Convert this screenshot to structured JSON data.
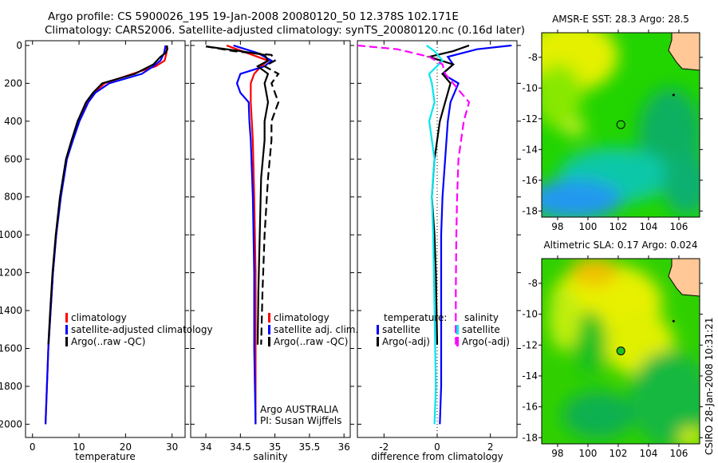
{
  "header": {
    "line1": "Argo profile: CS 5900026_195 19-Jan-2008 20080120_50 12.378S 102.171E",
    "line2": "Climatology: CARS2006. Satellite-adjusted climatology: synTS_20080120.nc (0.16d later)"
  },
  "credit": "CSIRO 28-Jan-2008 10:31:21",
  "colors": {
    "clim": "#ff0000",
    "sat": "#0000ff",
    "argo": "#000000",
    "sal_sat": "#00e5ee",
    "sal_argo": "#ff00ff"
  },
  "chart_data": [
    {
      "type": "line",
      "id": "temperature",
      "xlabel": "temperature",
      "ylabel": "",
      "xlim": [
        -1.5,
        32.8
      ],
      "ylim": [
        2070,
        -25
      ],
      "xticks": [
        "0",
        "10",
        "20",
        "30"
      ],
      "xtickvals": [
        0,
        10,
        20,
        30
      ],
      "yticks": [
        "0",
        "200",
        "400",
        "600",
        "800",
        "1000",
        "1200",
        "1400",
        "1600",
        "1800",
        "2000"
      ],
      "legend": [
        "climatology",
        "satellite-adjusted climatology",
        "Argo(..raw -QC)"
      ],
      "series": [
        {
          "name": "climatology",
          "color": "#ff0000",
          "depth": [
            0,
            40,
            80,
            110,
            150,
            200,
            250,
            300,
            400,
            500,
            600,
            800,
            1000,
            1200,
            1400,
            1600,
            1800,
            2000
          ],
          "values": [
            28.9,
            28.8,
            28.4,
            26.5,
            21.5,
            15.5,
            13.2,
            11.8,
            10,
            8.6,
            7.3,
            6,
            5.1,
            4.4,
            3.9,
            3.4,
            3.1,
            2.8
          ]
        },
        {
          "name": "satellite-adjusted climatology",
          "color": "#0000ff",
          "depth": [
            0,
            40,
            80,
            110,
            150,
            200,
            250,
            300,
            400,
            500,
            600,
            800,
            1000,
            1200,
            1400,
            1600,
            1800,
            2000
          ],
          "values": [
            28.6,
            28.3,
            27.5,
            26,
            23.5,
            16.5,
            13.5,
            12,
            10.1,
            8.7,
            7.4,
            6.1,
            5.1,
            4.4,
            3.9,
            3.4,
            3.1,
            2.8
          ]
        },
        {
          "name": "Argo(..raw -QC)",
          "color": "#000000",
          "depth": [
            0,
            20,
            40,
            60,
            100,
            150,
            200,
            250,
            300,
            400,
            500,
            600,
            800,
            1000,
            1200,
            1400,
            1580
          ],
          "values": [
            28.9,
            29,
            28.6,
            27.5,
            26,
            22,
            15,
            13,
            11.5,
            9.7,
            8.4,
            7.2,
            5.9,
            5,
            4.3,
            3.8,
            3.4
          ]
        }
      ]
    },
    {
      "type": "line",
      "id": "salinity",
      "xlabel": "salinity",
      "ylabel": "",
      "xlim": [
        33.78,
        36.09
      ],
      "ylim": [
        2070,
        -25
      ],
      "xticks": [
        "34",
        "34.5",
        "35",
        "35.5",
        "36"
      ],
      "xtickvals": [
        34,
        34.5,
        35,
        35.5,
        36
      ],
      "legend": [
        "climatology",
        "satellite adj. clim.",
        "Argo(..raw -QC)"
      ],
      "annotation": [
        "Argo AUSTRALIA",
        "PI: Susan Wijffels"
      ],
      "series": [
        {
          "name": "climatology",
          "color": "#ff0000",
          "depth": [
            0,
            40,
            80,
            110,
            150,
            200,
            300,
            500,
            800,
            1200,
            1600,
            2000
          ],
          "values": [
            34.3,
            34.6,
            34.9,
            34.8,
            34.7,
            34.65,
            34.65,
            34.68,
            34.7,
            34.72,
            34.72,
            34.72
          ]
        },
        {
          "name": "satellite adj. clim.",
          "color": "#0000ff",
          "depth": [
            0,
            40,
            80,
            110,
            150,
            200,
            250,
            300,
            400,
            500,
            800,
            1200,
            1600,
            2000
          ],
          "values": [
            34.4,
            34.75,
            34.95,
            34.85,
            34.5,
            34.45,
            34.5,
            34.62,
            34.63,
            34.65,
            34.68,
            34.7,
            34.7,
            34.72
          ]
        },
        {
          "name": "Argo(..raw -QC)",
          "color": "#000000",
          "dashed": true,
          "depth": [
            5,
            30,
            50,
            80,
            110,
            150,
            200,
            300,
            400,
            500,
            700,
            1000,
            1300,
            1580
          ],
          "values": [
            34.0,
            34.4,
            34.95,
            35.0,
            34.85,
            35.05,
            34.95,
            35.05,
            34.95,
            34.95,
            34.9,
            34.85,
            34.82,
            34.8
          ]
        },
        {
          "name": "Argo solid",
          "color": "#000000",
          "depth": [
            5,
            30,
            50,
            80,
            110,
            150,
            200,
            300,
            400,
            500,
            700,
            1000,
            1300,
            1580
          ],
          "values": [
            34.0,
            34.5,
            34.85,
            34.9,
            34.75,
            34.9,
            34.85,
            34.9,
            34.85,
            34.85,
            34.8,
            34.78,
            34.76,
            34.75
          ]
        }
      ]
    },
    {
      "type": "line",
      "id": "difference",
      "xlabel": "difference from climatology",
      "ylabel": "",
      "xlim": [
        -3,
        3
      ],
      "ylim": [
        2070,
        -25
      ],
      "xticks": [
        "-2",
        "0",
        "2"
      ],
      "xtickvals": [
        -2,
        0,
        2
      ],
      "legend_left": [
        "temperature:",
        "satellite",
        "Argo(-adj)"
      ],
      "legend_right": [
        "salinity",
        "satellite",
        "Argo(-adj)"
      ],
      "series": [
        {
          "name": "temperature satellite",
          "color": "#0000ff",
          "depth": [
            0,
            20,
            60,
            100,
            150,
            200,
            300,
            400,
            600,
            800,
            1000,
            1400,
            1800,
            2000
          ],
          "values": [
            2.8,
            1.5,
            0.4,
            0.6,
            0.2,
            0.8,
            0.5,
            0.4,
            0.3,
            0.2,
            0.15,
            0.15,
            0.15,
            0.1
          ]
        },
        {
          "name": "temperature Argo(-adj)",
          "color": "#000000",
          "depth": [
            0,
            30,
            60,
            100,
            150,
            200,
            300,
            400,
            600,
            800,
            1000,
            1200,
            1580
          ],
          "values": [
            1.2,
            0.6,
            -0.3,
            0.6,
            0.2,
            0.5,
            0.3,
            0.1,
            -0.1,
            -0.2,
            -0.1,
            -0.05,
            0
          ]
        },
        {
          "name": "salinity satellite",
          "color": "#00e5ee",
          "depth": [
            0,
            30,
            80,
            150,
            200,
            300,
            400,
            600,
            800,
            1000,
            1400,
            1800,
            2000
          ],
          "values": [
            -0.4,
            -0.1,
            0.2,
            -0.3,
            -0.2,
            -0.1,
            -0.3,
            -0.1,
            -0.2,
            -0.15,
            -0.1,
            -0.05,
            -0.1
          ]
        },
        {
          "name": "salinity Argo(-adj)",
          "color": "#ff00ff",
          "dashed": true,
          "depth": [
            0,
            20,
            60,
            100,
            150,
            200,
            300,
            400,
            600,
            800,
            1000,
            1300,
            1580
          ],
          "values": [
            -3,
            -1.5,
            -0.3,
            0.2,
            0.3,
            0.6,
            1.2,
            1,
            0.8,
            0.75,
            0.72,
            0.7,
            0.7
          ]
        }
      ]
    },
    {
      "type": "heatmap",
      "id": "sst_map",
      "title": "AMSR-E SST: 28.3 Argo: 28.5",
      "xlim": [
        96.95,
        107.37
      ],
      "ylim": [
        -18.4,
        -6.4
      ],
      "xticks": [
        "98",
        "100",
        "102",
        "104",
        "106"
      ],
      "xtickvals": [
        98,
        100,
        102,
        104,
        106
      ],
      "yticks": [
        "-8",
        "-10",
        "-12",
        "-14",
        "-16",
        "-18"
      ],
      "ytickvals": [
        -8,
        -10,
        -12,
        -14,
        -16,
        -18
      ],
      "marker": {
        "lon": 102.171,
        "lat": -12.378
      }
    },
    {
      "type": "heatmap",
      "id": "sla_map",
      "title": "Altimetric SLA: 0.17 Argo: 0.024",
      "xlim": [
        96.95,
        107.37
      ],
      "ylim": [
        -18.4,
        -6.4
      ],
      "xticks": [
        "98",
        "100",
        "102",
        "104",
        "106"
      ],
      "xtickvals": [
        98,
        100,
        102,
        104,
        106
      ],
      "yticks": [
        "-8",
        "-10",
        "-12",
        "-14",
        "-16",
        "-18"
      ],
      "ytickvals": [
        -8,
        -10,
        -12,
        -14,
        -16,
        -18
      ],
      "marker": {
        "lon": 102.171,
        "lat": -12.378
      }
    }
  ]
}
